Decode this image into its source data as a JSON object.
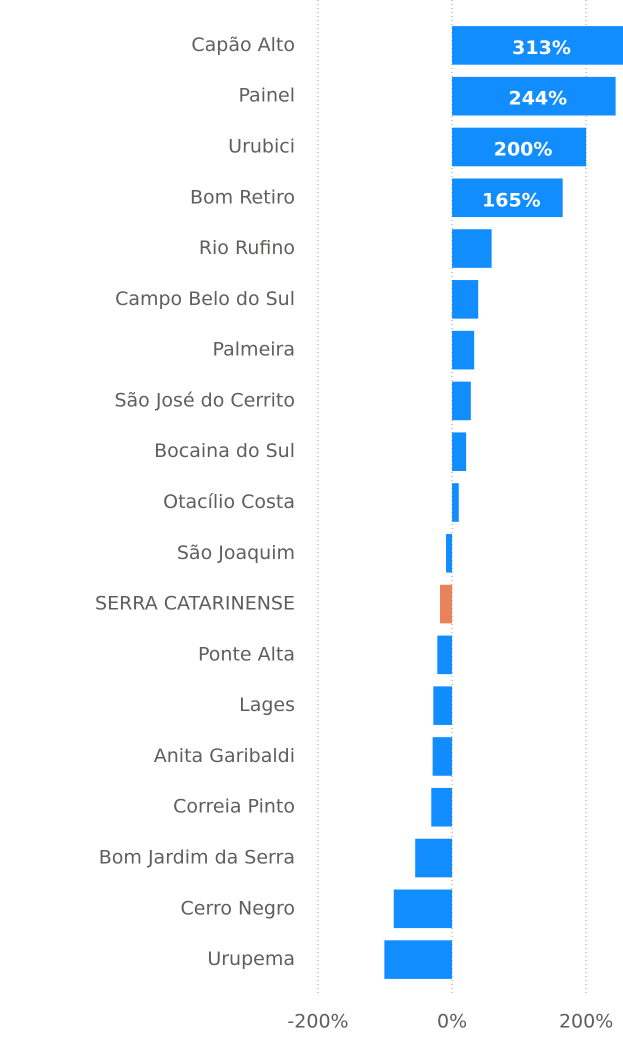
{
  "chart_data": {
    "type": "bar",
    "orientation": "horizontal",
    "categories": [
      "Capão Alto",
      "Painel",
      "Urubici",
      "Bom Retiro",
      "Rio Rufino",
      "Campo Belo do Sul",
      "Palmeira",
      "São José do Cerrito",
      "Bocaina do Sul",
      "Otacílio Costa",
      "São Joaquim",
      "SERRA CATARINENSE",
      "Ponte Alta",
      "Lages",
      "Anita Garibaldi",
      "Correia Pinto",
      "Bom Jardim da Serra",
      "Cerro Negro",
      "Urupema"
    ],
    "values": [
      313,
      244,
      200,
      165,
      59,
      39,
      33,
      28,
      21,
      10,
      -9,
      -18,
      -22,
      -28,
      -29,
      -31,
      -55,
      -87,
      -101
    ],
    "value_labels": [
      "313%",
      "244%",
      "200%",
      "165%",
      null,
      null,
      null,
      null,
      null,
      null,
      null,
      null,
      null,
      null,
      null,
      null,
      null,
      null,
      null
    ],
    "colors": [
      "#118dff",
      "#118dff",
      "#118dff",
      "#118dff",
      "#118dff",
      "#118dff",
      "#118dff",
      "#118dff",
      "#118dff",
      "#118dff",
      "#118dff",
      "#e8825a",
      "#118dff",
      "#118dff",
      "#118dff",
      "#118dff",
      "#118dff",
      "#118dff",
      "#118dff"
    ],
    "xlim": [
      -200,
      255
    ],
    "xticks": [
      {
        "value": -200,
        "label": "-200%"
      },
      {
        "value": 0,
        "label": "0%"
      },
      {
        "value": 200,
        "label": "200%"
      }
    ],
    "grid": true
  }
}
